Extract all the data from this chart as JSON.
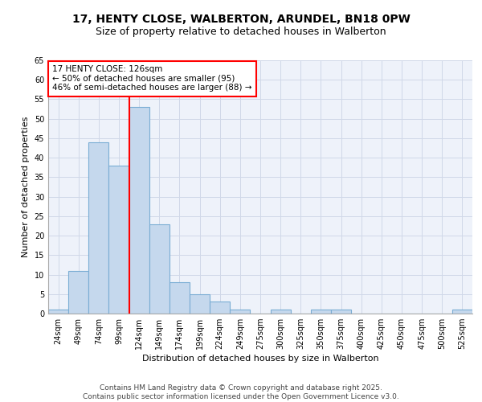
{
  "title_line1": "17, HENTY CLOSE, WALBERTON, ARUNDEL, BN18 0PW",
  "title_line2": "Size of property relative to detached houses in Walberton",
  "xlabel": "Distribution of detached houses by size in Walberton",
  "ylabel": "Number of detached properties",
  "categories": [
    "24sqm",
    "49sqm",
    "74sqm",
    "99sqm",
    "124sqm",
    "149sqm",
    "174sqm",
    "199sqm",
    "224sqm",
    "249sqm",
    "275sqm",
    "300sqm",
    "325sqm",
    "350sqm",
    "375sqm",
    "400sqm",
    "425sqm",
    "450sqm",
    "475sqm",
    "500sqm",
    "525sqm"
  ],
  "values": [
    1,
    11,
    44,
    38,
    53,
    23,
    8,
    5,
    3,
    1,
    0,
    1,
    0,
    1,
    1,
    0,
    0,
    0,
    0,
    0,
    1
  ],
  "bar_color": "#c5d8ed",
  "bar_edge_color": "#7aadd4",
  "grid_color": "#d0d8e8",
  "background_color": "#eef2fa",
  "annotation_text": "17 HENTY CLOSE: 126sqm\n← 50% of detached houses are smaller (95)\n46% of semi-detached houses are larger (88) →",
  "annotation_box_color": "white",
  "annotation_box_edge_color": "red",
  "vline_color": "red",
  "vline_x": 3.5,
  "ylim": [
    0,
    65
  ],
  "yticks": [
    0,
    5,
    10,
    15,
    20,
    25,
    30,
    35,
    40,
    45,
    50,
    55,
    60,
    65
  ],
  "footer_line1": "Contains HM Land Registry data © Crown copyright and database right 2025.",
  "footer_line2": "Contains public sector information licensed under the Open Government Licence v3.0.",
  "title_fontsize": 10,
  "subtitle_fontsize": 9,
  "axis_label_fontsize": 8,
  "tick_fontsize": 7,
  "annotation_fontsize": 7.5,
  "footer_fontsize": 6.5
}
